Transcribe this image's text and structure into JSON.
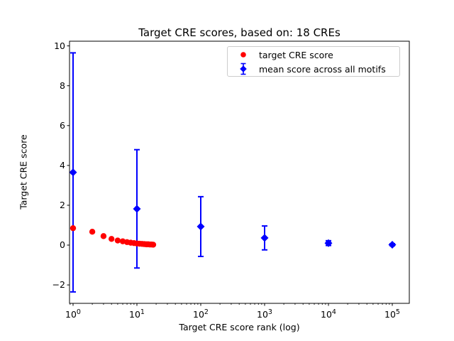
{
  "figure": {
    "title": "Target CRE scores, based on: 18 CREs",
    "xlabel": "Target CRE score rank (log)",
    "ylabel": "Target CRE score"
  },
  "legend": {
    "position": "upper right",
    "entries": [
      {
        "label": "target CRE score",
        "marker": "circle",
        "color": "#ff0000"
      },
      {
        "label": "mean score across all motifs",
        "marker": "diamond-errorbar",
        "color": "#0000ff"
      }
    ]
  },
  "chart_data": {
    "type": "scatter",
    "title": "Target CRE scores, based on: 18 CREs",
    "xlabel": "Target CRE score rank (log)",
    "ylabel": "Target CRE score",
    "x_scale": "log",
    "xlim": [
      0.88,
      185000
    ],
    "ylim": [
      -2.92,
      10.23
    ],
    "x_ticks": [
      1,
      10,
      100,
      1000,
      10000,
      100000
    ],
    "x_tick_labels": [
      "10^0",
      "10^1",
      "10^2",
      "10^3",
      "10^4",
      "10^5"
    ],
    "y_ticks": [
      -2,
      0,
      2,
      4,
      6,
      8,
      10
    ],
    "y_tick_labels": [
      "−2",
      "0",
      "2",
      "4",
      "6",
      "8",
      "10"
    ],
    "grid": false,
    "legend_position": "upper right",
    "series": [
      {
        "name": "target CRE score",
        "marker": "circle",
        "color": "#ff0000",
        "x": [
          1,
          2,
          3,
          4,
          5,
          6,
          7,
          8,
          9,
          10,
          11,
          12,
          13,
          14,
          15,
          16,
          17,
          18
        ],
        "y": [
          0.85,
          0.67,
          0.45,
          0.31,
          0.23,
          0.19,
          0.15,
          0.12,
          0.1,
          0.08,
          0.07,
          0.06,
          0.05,
          0.04,
          0.04,
          0.03,
          0.03,
          0.02
        ]
      },
      {
        "name": "mean score across all motifs",
        "marker": "diamond",
        "color": "#0000ff",
        "x": [
          1,
          10,
          100,
          1000,
          10000,
          100000
        ],
        "y": [
          3.65,
          1.82,
          0.93,
          0.36,
          0.1,
          0.02
        ],
        "yerr": [
          6.0,
          2.97,
          1.5,
          0.6,
          0.12,
          0.05
        ]
      }
    ]
  }
}
